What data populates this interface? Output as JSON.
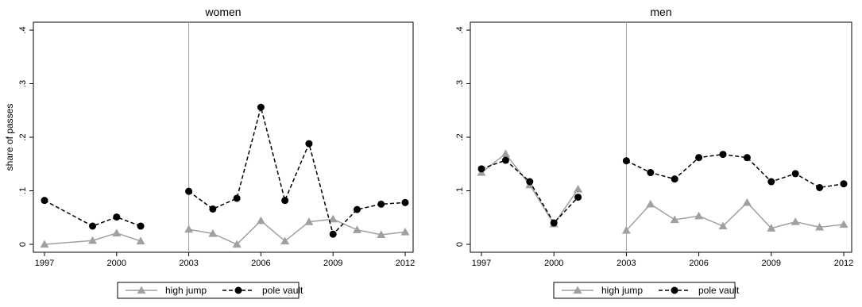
{
  "chart_data": [
    {
      "type": "line",
      "title": "women",
      "xlabel": "",
      "ylabel": "share of passes",
      "xlim": [
        1997,
        2012
      ],
      "ylim": [
        0,
        0.4
      ],
      "xticks": [
        1997,
        2000,
        2003,
        2006,
        2009,
        2012
      ],
      "xtick_labels": [
        "1997",
        "2000",
        "2003",
        "2006",
        "2009",
        "2012"
      ],
      "yticks": [
        0,
        0.1,
        0.2,
        0.3,
        0.4
      ],
      "ytick_labels": [
        "0",
        ".1",
        ".2",
        ".3",
        ".4"
      ],
      "vline": 2003,
      "grid": false,
      "legend": "bottom",
      "series": [
        {
          "name": "high jump",
          "color": "#a0a0a0",
          "marker": "triangle",
          "linestyle": "solid",
          "segments": [
            {
              "x": [
                1997,
                1999,
                2000,
                2001
              ],
              "y": [
                0.0,
                0.007,
                0.021,
                0.006
              ]
            },
            {
              "x": [
                2003,
                2004,
                2005,
                2006,
                2007,
                2008,
                2009,
                2010,
                2011,
                2012
              ],
              "y": [
                0.028,
                0.02,
                0.0,
                0.044,
                0.006,
                0.042,
                0.047,
                0.027,
                0.018,
                0.023
              ]
            }
          ]
        },
        {
          "name": "pole vault",
          "color": "#000000",
          "marker": "circle",
          "linestyle": "dashed",
          "segments": [
            {
              "x": [
                1997,
                1999,
                2000,
                2001
              ],
              "y": [
                0.082,
                0.034,
                0.051,
                0.034
              ]
            },
            {
              "x": [
                2003,
                2004,
                2005,
                2006,
                2007,
                2008,
                2009,
                2010,
                2011,
                2012
              ],
              "y": [
                0.099,
                0.066,
                0.086,
                0.256,
                0.082,
                0.188,
                0.019,
                0.065,
                0.075,
                0.078
              ]
            }
          ]
        }
      ]
    },
    {
      "type": "line",
      "title": "men",
      "xlabel": "",
      "ylabel": "",
      "xlim": [
        1997,
        2012
      ],
      "ylim": [
        0,
        0.4
      ],
      "xticks": [
        1997,
        2000,
        2003,
        2006,
        2009,
        2012
      ],
      "xtick_labels": [
        "1997",
        "2000",
        "2003",
        "2006",
        "2009",
        "2012"
      ],
      "yticks": [
        0,
        0.1,
        0.2,
        0.3,
        0.4
      ],
      "ytick_labels": [
        "0",
        ".1",
        ".2",
        ".3",
        ".4"
      ],
      "vline": 2003,
      "grid": false,
      "legend": "bottom",
      "series": [
        {
          "name": "high jump",
          "color": "#a0a0a0",
          "marker": "triangle",
          "linestyle": "solid",
          "segments": [
            {
              "x": [
                1997,
                1998,
                1999,
                2000,
                2001
              ],
              "y": [
                0.134,
                0.169,
                0.111,
                0.038,
                0.103
              ]
            },
            {
              "x": [
                2003,
                2004,
                2005,
                2006,
                2007,
                2008,
                2009,
                2010,
                2011,
                2012
              ],
              "y": [
                0.026,
                0.075,
                0.046,
                0.053,
                0.034,
                0.078,
                0.03,
                0.042,
                0.032,
                0.037
              ]
            }
          ]
        },
        {
          "name": "pole vault",
          "color": "#000000",
          "marker": "circle",
          "linestyle": "dashed",
          "segments": [
            {
              "x": [
                1997,
                1998,
                1999,
                2000,
                2001
              ],
              "y": [
                0.141,
                0.157,
                0.117,
                0.04,
                0.088
              ]
            },
            {
              "x": [
                2003,
                2004,
                2005,
                2006,
                2007,
                2008,
                2009,
                2010,
                2011,
                2012
              ],
              "y": [
                0.156,
                0.134,
                0.122,
                0.162,
                0.168,
                0.162,
                0.117,
                0.132,
                0.106,
                0.113
              ]
            }
          ]
        }
      ]
    }
  ]
}
